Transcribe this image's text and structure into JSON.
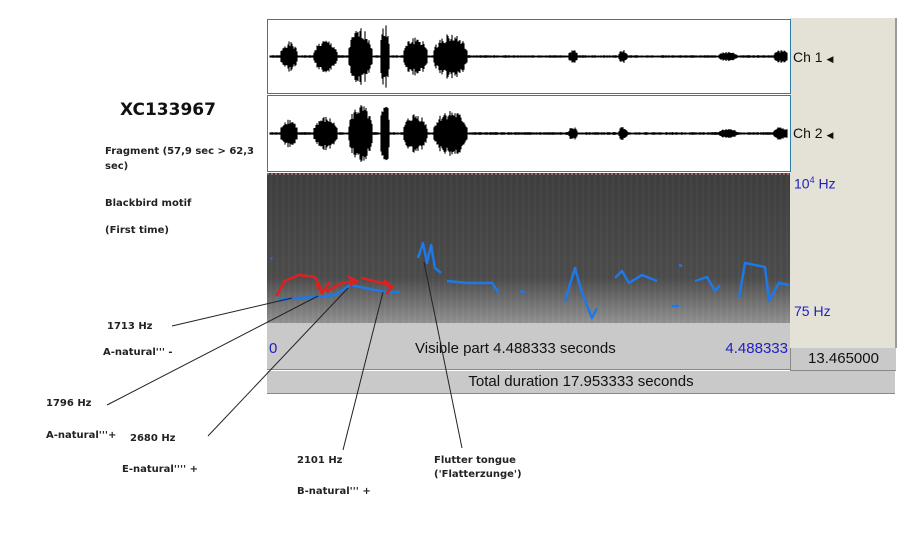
{
  "recording_id": "XC133967",
  "notes": {
    "fragment": "Fragment (57,9 sec > 62,3",
    "fragment_cont": "sec)",
    "motif": "Blackbird motif",
    "occurrence": "(First time)"
  },
  "channels": [
    "Ch 1",
    "Ch 2"
  ],
  "spectrogram": {
    "top_label_base": "10",
    "top_label_exp": "4",
    "top_label_unit": " Hz",
    "bottom_label": "75 Hz"
  },
  "time": {
    "visible_start": "0",
    "visible_label": "Visible part 4.488333 seconds",
    "visible_end": "4.488333",
    "remaining": "13.465000",
    "total_label": "Total duration 17.953333 seconds"
  },
  "annotations": [
    {
      "freq": "1713 Hz",
      "note": "A-natural''' -"
    },
    {
      "freq": "1796 Hz",
      "note": "A-natural'''+"
    },
    {
      "freq": "2680 Hz",
      "note": "E-natural'''' +"
    },
    {
      "freq": "2101 Hz",
      "note": "B-natural''' +"
    },
    {
      "freq": "Flutter tongue",
      "note": "('Flatterzunge')"
    }
  ],
  "colors": {
    "pitch": "#1e78e6",
    "hand_arrows": "#e02020",
    "axis_labels": "#2020c0",
    "panel": "#e4e2d6",
    "bar": "#c9c9c9"
  }
}
